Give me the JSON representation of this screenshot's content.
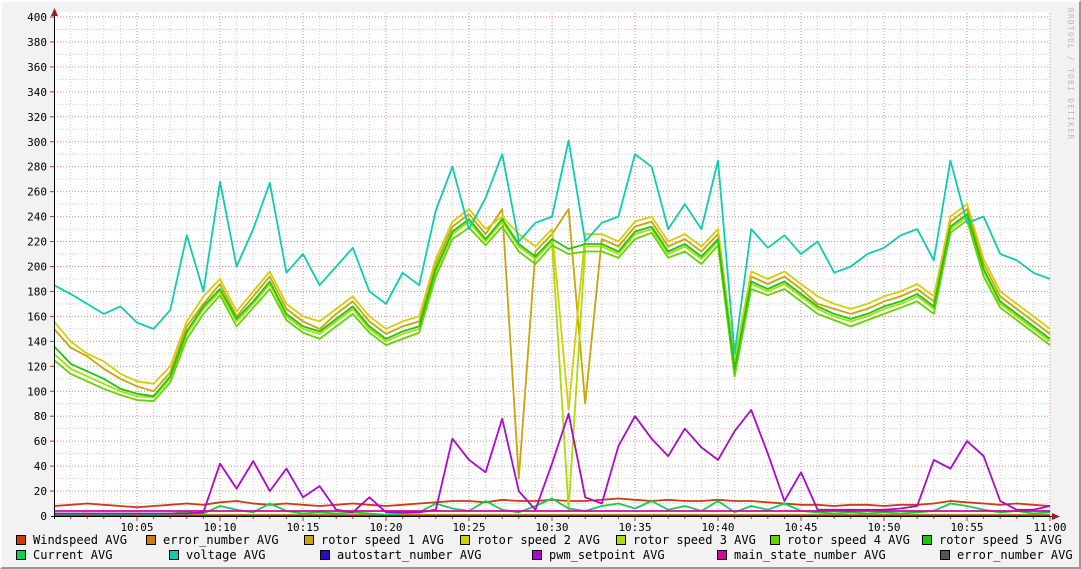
{
  "watermark": "RRDTOOL / TOBI OETIKER",
  "chart_data": {
    "type": "line",
    "title": "",
    "x_axis": {
      "start": "10:00",
      "end": "11:00",
      "minutes_span": 60,
      "minor_step_min": 1,
      "major_step_min": 5,
      "tick_labels": [
        {
          "label": "10:05",
          "min": 5
        },
        {
          "label": "10:10",
          "min": 10
        },
        {
          "label": "10:15",
          "min": 15
        },
        {
          "label": "10:20",
          "min": 20
        },
        {
          "label": "10:25",
          "min": 25
        },
        {
          "label": "10:30",
          "min": 30
        },
        {
          "label": "10:35",
          "min": 35
        },
        {
          "label": "10:40",
          "min": 40
        },
        {
          "label": "10:45",
          "min": 45
        },
        {
          "label": "10:50",
          "min": 50
        },
        {
          "label": "10:55",
          "min": 55
        },
        {
          "label": "11:00",
          "min": 60
        }
      ]
    },
    "y_axis": {
      "min": 0,
      "max": 400,
      "major_step": 20,
      "minor_step": 10,
      "tick_labels": [
        "0",
        "20",
        "40",
        "60",
        "80",
        "100",
        "120",
        "140",
        "160",
        "180",
        "200",
        "220",
        "240",
        "260",
        "280",
        "300",
        "320",
        "340",
        "360",
        "380",
        "400"
      ]
    },
    "grid": {
      "on": true,
      "major_color": "#e28a8a",
      "minor_color": "#bcbcbc"
    },
    "axis_color": "#000000",
    "arrow_color": "#9a1f1f",
    "series": [
      {
        "name": "Windspeed AVG",
        "color": "#CC3C10",
        "values": [
          8,
          9,
          10,
          9,
          8,
          7,
          8,
          9,
          10,
          9,
          11,
          12,
          10,
          9,
          10,
          9,
          8,
          9,
          10,
          9,
          8,
          9,
          10,
          11,
          12,
          12,
          11,
          13,
          12,
          12,
          13,
          12,
          12,
          13,
          14,
          13,
          12,
          13,
          12,
          12,
          13,
          12,
          12,
          11,
          10,
          9,
          9,
          8,
          9,
          9,
          8,
          9,
          9,
          10,
          12,
          11,
          10,
          9,
          10,
          9,
          8
        ]
      },
      {
        "name": "error_number AVG",
        "color": "#D2790E",
        "values": [
          1,
          1
        ]
      },
      {
        "name": "rotor speed 1 AVG",
        "color": "#C9A40A",
        "values": [
          150,
          135,
          128,
          118,
          110,
          104,
          100,
          115,
          152,
          170,
          186,
          160,
          176,
          192,
          166,
          156,
          150,
          162,
          172,
          156,
          146,
          152,
          156,
          202,
          232,
          242,
          226,
          246,
          30,
          212,
          226,
          246,
          90,
          222,
          216,
          232,
          236,
          216,
          222,
          212,
          226,
          112,
          192,
          186,
          192,
          182,
          170,
          166,
          162,
          166,
          172,
          176,
          182,
          172,
          236,
          246,
          202,
          176,
          166,
          156,
          146
        ]
      },
      {
        "name": "rotor speed 2 AVG",
        "color": "#D2CE0A",
        "values": [
          156,
          140,
          130,
          124,
          114,
          108,
          106,
          120,
          156,
          176,
          190,
          164,
          180,
          196,
          170,
          160,
          156,
          166,
          176,
          160,
          150,
          156,
          160,
          206,
          236,
          246,
          230,
          240,
          226,
          216,
          230,
          85,
          226,
          226,
          220,
          236,
          240,
          220,
          226,
          216,
          230,
          125,
          196,
          190,
          196,
          186,
          176,
          170,
          166,
          170,
          176,
          180,
          186,
          176,
          240,
          250,
          206,
          180,
          170,
          160,
          150
        ]
      },
      {
        "name": "rotor speed 3 AVG",
        "color": "#A8DC0A",
        "values": [
          130,
          118,
          112,
          106,
          100,
          96,
          95,
          110,
          146,
          166,
          180,
          156,
          170,
          186,
          160,
          150,
          146,
          156,
          166,
          150,
          140,
          146,
          150,
          196,
          226,
          236,
          220,
          236,
          216,
          206,
          220,
          5,
          216,
          216,
          210,
          226,
          230,
          210,
          216,
          206,
          220,
          115,
          186,
          180,
          186,
          176,
          166,
          160,
          156,
          160,
          166,
          170,
          176,
          166,
          230,
          240,
          196,
          170,
          160,
          150,
          140
        ]
      },
      {
        "name": "rotor speed 4 AVG",
        "color": "#62D40A",
        "values": [
          125,
          114,
          108,
          102,
          97,
          93,
          92,
          107,
          142,
          162,
          177,
          152,
          167,
          182,
          157,
          147,
          142,
          152,
          162,
          147,
          137,
          142,
          147,
          192,
          222,
          231,
          217,
          232,
          212,
          202,
          217,
          210,
          212,
          212,
          207,
          222,
          227,
          207,
          212,
          202,
          217,
          112,
          182,
          177,
          182,
          172,
          162,
          157,
          152,
          157,
          162,
          167,
          172,
          162,
          227,
          237,
          192,
          167,
          157,
          147,
          137
        ]
      },
      {
        "name": "rotor speed 5 AVG",
        "color": "#1EC614",
        "values": [
          136,
          122,
          116,
          110,
          102,
          98,
          96,
          112,
          148,
          168,
          182,
          158,
          172,
          188,
          162,
          152,
          148,
          158,
          168,
          152,
          142,
          148,
          152,
          198,
          228,
          238,
          222,
          238,
          218,
          208,
          222,
          214,
          218,
          218,
          212,
          228,
          232,
          212,
          218,
          208,
          222,
          118,
          188,
          182,
          188,
          178,
          168,
          162,
          158,
          162,
          168,
          172,
          178,
          168,
          232,
          242,
          198,
          172,
          162,
          152,
          142
        ]
      },
      {
        "name": "Current AVG",
        "color": "#0AD24E",
        "values": [
          2,
          1,
          2,
          1,
          1,
          2,
          1,
          2,
          3,
          2,
          8,
          5,
          3,
          10,
          4,
          2,
          3,
          2,
          3,
          2,
          1,
          2,
          3,
          10,
          6,
          4,
          12,
          5,
          3,
          8,
          14,
          6,
          4,
          8,
          10,
          6,
          12,
          5,
          8,
          4,
          12,
          3,
          8,
          5,
          10,
          4,
          3,
          2,
          3,
          2,
          3,
          2,
          3,
          4,
          10,
          8,
          5,
          3,
          4,
          2,
          3
        ]
      },
      {
        "name": "voltage AVG",
        "color": "#0BCDAF",
        "values": [
          185,
          178,
          170,
          162,
          168,
          155,
          150,
          165,
          225,
          180,
          268,
          200,
          230,
          267,
          195,
          210,
          185,
          200,
          215,
          180,
          170,
          195,
          185,
          245,
          280,
          230,
          255,
          290,
          220,
          235,
          240,
          301,
          220,
          235,
          240,
          290,
          280,
          230,
          250,
          230,
          285,
          130,
          230,
          215,
          225,
          210,
          220,
          195,
          200,
          210,
          215,
          225,
          230,
          205,
          285,
          235,
          240,
          210,
          205,
          195,
          190
        ]
      },
      {
        "name": "autostart_number AVG",
        "color": "#2A0AC8",
        "values": [
          0,
          0
        ]
      },
      {
        "name": "pwm_setpoint AVG",
        "color": "#A80ACF",
        "values": [
          2,
          2,
          2,
          2,
          2,
          2,
          2,
          2,
          2,
          3,
          42,
          22,
          44,
          20,
          38,
          15,
          24,
          5,
          3,
          15,
          3,
          3,
          3,
          5,
          62,
          45,
          35,
          78,
          20,
          5,
          42,
          82,
          15,
          10,
          56,
          80,
          62,
          48,
          70,
          55,
          45,
          68,
          85,
          50,
          12,
          35,
          5,
          5,
          5,
          5,
          5,
          6,
          8,
          45,
          38,
          60,
          48,
          12,
          5,
          5,
          8
        ]
      },
      {
        "name": "main_state_number AVG",
        "color": "#CC0A9E",
        "values": [
          4,
          4
        ]
      },
      {
        "name": "error_number AVG",
        "color": "#555555",
        "values": [
          0,
          0
        ]
      }
    ],
    "legend_rows": [
      [
        0,
        1,
        2,
        3,
        4,
        5,
        6
      ],
      [
        7,
        8,
        9,
        10,
        11,
        12
      ]
    ]
  }
}
